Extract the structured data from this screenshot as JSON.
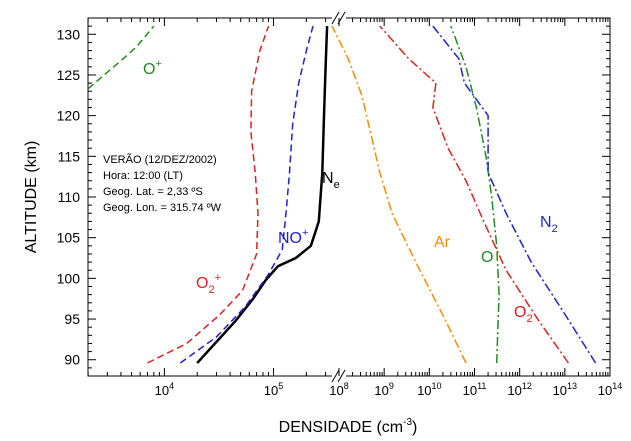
{
  "chart_data": {
    "type": "line",
    "xlabel": "DENSIDADE",
    "xlabel_unit": "(cm",
    "xlabel_exp": "-3",
    "xlabel_close": ")",
    "ylabel": "ALTITUDE (km)",
    "ylim": [
      88,
      132
    ],
    "yticks": [
      "90",
      "95",
      "100",
      "105",
      "110",
      "115",
      "120",
      "125",
      "130"
    ],
    "x_scale": "log, broken axis",
    "left_panel": {
      "xlim_log10": [
        3.3,
        5.6
      ],
      "ticks": [
        {
          "base": "10",
          "exp": "4",
          "value": 4
        },
        {
          "base": "10",
          "exp": "5",
          "value": 5
        }
      ]
    },
    "right_panel": {
      "xlim_log10": [
        8,
        14
      ],
      "ticks": [
        {
          "base": "10",
          "exp": "8",
          "value": 8
        },
        {
          "base": "10",
          "exp": "9",
          "value": 9
        },
        {
          "base": "10",
          "exp": "10",
          "value": 10
        },
        {
          "base": "10",
          "exp": "11",
          "value": 11
        },
        {
          "base": "10",
          "exp": "12",
          "value": 12
        },
        {
          "base": "10",
          "exp": "13",
          "value": 13
        },
        {
          "base": "10",
          "exp": "14",
          "value": 14
        }
      ]
    },
    "info": {
      "line1": "VERÃO (12/DEZ/2002)",
      "line2": "Hora: 12:00 (LT)",
      "line3": "Geog. Lat. = 2,33 ºS",
      "line4": "Geog. Lon. = 315.74 ºW"
    },
    "series": [
      {
        "name_base": "N",
        "name_sub": "e",
        "panel": "left",
        "color": "#000000",
        "dash": "solid",
        "points": [
          [
            20000,
            89.6
          ],
          [
            45000,
            94.8
          ],
          [
            65000,
            97.5
          ],
          [
            85000,
            99.8
          ],
          [
            110000,
            101.5
          ],
          [
            160000,
            102.5
          ],
          [
            220000,
            104
          ],
          [
            260000,
            107
          ],
          [
            280000,
            113
          ],
          [
            290000,
            120
          ],
          [
            300000,
            126
          ],
          [
            310000,
            131
          ]
        ]
      },
      {
        "name_base": "NO",
        "name_sup": "+",
        "panel": "left",
        "color": "#1f1fd6",
        "dash": "dashed",
        "points": [
          [
            14000,
            89.6
          ],
          [
            30000,
            92.8
          ],
          [
            55000,
            96.5
          ],
          [
            90000,
            100.5
          ],
          [
            120000,
            103.5
          ],
          [
            130000,
            108
          ],
          [
            140000,
            113
          ],
          [
            150000,
            119
          ],
          [
            170000,
            124
          ],
          [
            200000,
            128
          ],
          [
            230000,
            131
          ]
        ]
      },
      {
        "name_base": "O",
        "name_sub": "2",
        "name_sup": "+",
        "panel": "left",
        "color": "#e02020",
        "dash": "dashed",
        "points": [
          [
            7000,
            89.6
          ],
          [
            16000,
            92
          ],
          [
            32000,
            95.5
          ],
          [
            52000,
            98.5
          ],
          [
            70000,
            103
          ],
          [
            72000,
            108
          ],
          [
            68000,
            113
          ],
          [
            62000,
            118
          ],
          [
            63000,
            123
          ],
          [
            75000,
            128
          ],
          [
            90000,
            131
          ]
        ]
      },
      {
        "name_base": "O",
        "name_sup": "+",
        "panel": "left",
        "color": "#228b22",
        "dash": "dashed",
        "points": [
          [
            2000,
            123.3
          ],
          [
            2800,
            125
          ],
          [
            3800,
            126.5
          ],
          [
            5600,
            128.5
          ],
          [
            8000,
            131
          ]
        ]
      },
      {
        "name_base": "Ar",
        "panel": "right",
        "color": "#ff8c00",
        "dash": "dashdot",
        "points": [
          [
            65000000000.0,
            89.6
          ],
          [
            22000000000.0,
            95
          ],
          [
            5000000000.0,
            102
          ],
          [
            1500000000.0,
            108
          ],
          [
            800000000.0,
            113
          ],
          [
            450000000.0,
            119
          ],
          [
            320000000.0,
            122.5
          ],
          [
            160000000.0,
            127
          ],
          [
            70000000.0,
            131
          ]
        ]
      },
      {
        "name_base": "O",
        "panel": "right",
        "color": "#228b22",
        "dash": "dashdot",
        "points": [
          [
            310000000000.0,
            89.6
          ],
          [
            330000000000.0,
            94
          ],
          [
            350000000000.0,
            98
          ],
          [
            310000000000.0,
            104
          ],
          [
            240000000000.0,
            110
          ],
          [
            180000000000.0,
            115
          ],
          [
            110000000000.0,
            121
          ],
          [
            65000000000.0,
            126
          ],
          [
            30000000000.0,
            131
          ]
        ]
      },
      {
        "name_base": "O",
        "name_sub": "2",
        "panel": "right",
        "color": "#e02020",
        "dash": "dashdot",
        "points": [
          [
            12000000000000.0,
            89.6
          ],
          [
            2500000000000.0,
            95
          ],
          [
            500000000000.0,
            101
          ],
          [
            160000000000.0,
            107
          ],
          [
            65000000000.0,
            112
          ],
          [
            26000000000.0,
            116
          ],
          [
            12000000000.0,
            121
          ],
          [
            14000000000.0,
            124
          ],
          [
            3500000000.0,
            127
          ],
          [
            800000000.0,
            131
          ]
        ]
      },
      {
        "name_base": "N",
        "name_sub": "2",
        "panel": "right",
        "color": "#1f1fd6",
        "dash": "dashdot",
        "points": [
          [
            48000000000000.0,
            89.6
          ],
          [
            9000000000000.0,
            96
          ],
          [
            1800000000000.0,
            102
          ],
          [
            500000000000.0,
            108
          ],
          [
            200000000000.0,
            113
          ],
          [
            200000000000.0,
            120
          ],
          [
            60000000000.0,
            124
          ],
          [
            45000000000.0,
            127
          ],
          [
            12000000000.0,
            131
          ]
        ]
      }
    ]
  }
}
